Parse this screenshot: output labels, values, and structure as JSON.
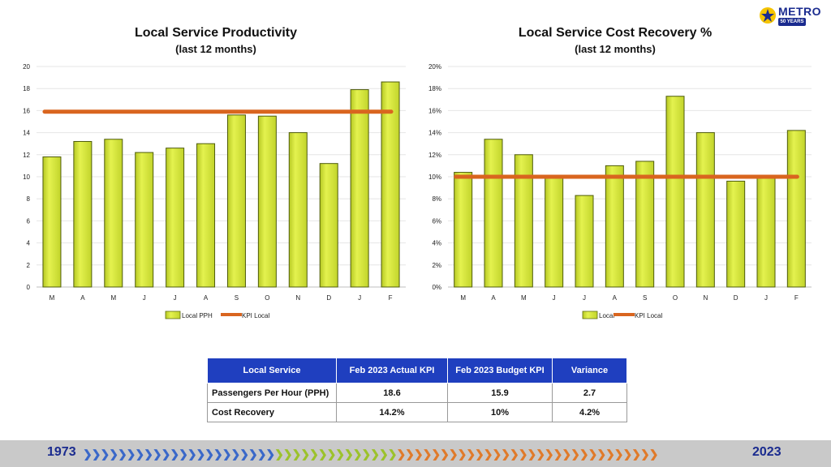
{
  "logo": {
    "text": "METRO",
    "badge": "50 YEARS"
  },
  "charts": [
    {
      "title": "Local Service Productivity",
      "subtitle": "(last 12 months)",
      "legend": [
        "Local PPH",
        "KPI Local"
      ]
    },
    {
      "title": "Local Service Cost Recovery %",
      "subtitle": "(last 12 months)",
      "legend": [
        "Local",
        "KPI Local"
      ]
    }
  ],
  "chart_data": [
    {
      "type": "bar",
      "title": "Local Service Productivity",
      "subtitle": "(last 12 months)",
      "categories": [
        "M",
        "A",
        "M",
        "J",
        "J",
        "A",
        "S",
        "O",
        "N",
        "D",
        "J",
        "F"
      ],
      "series": [
        {
          "name": "Local PPH",
          "type": "bar",
          "values": [
            11.8,
            13.2,
            13.4,
            12.2,
            12.6,
            13.0,
            15.6,
            15.5,
            14.0,
            11.2,
            17.9,
            18.6
          ]
        },
        {
          "name": "KPI Local",
          "type": "line",
          "values": [
            15.9,
            15.9,
            15.9,
            15.9,
            15.9,
            15.9,
            15.9,
            15.9,
            15.9,
            15.9,
            15.9,
            15.9
          ]
        }
      ],
      "ylim": [
        0,
        20
      ],
      "yticks": [
        "0",
        "2",
        "4",
        "6",
        "8",
        "10",
        "12",
        "14",
        "16",
        "18",
        "20"
      ],
      "colors": {
        "bar": "#d4e63a",
        "bar_dark": "#9aab17",
        "line": "#d9651f",
        "grid": "#e6e6e6"
      }
    },
    {
      "type": "bar",
      "title": "Local Service Cost Recovery %",
      "subtitle": "(last 12 months)",
      "categories": [
        "M",
        "A",
        "M",
        "J",
        "J",
        "A",
        "S",
        "O",
        "N",
        "D",
        "J",
        "F"
      ],
      "series": [
        {
          "name": "Local",
          "type": "bar",
          "values": [
            10.4,
            13.4,
            12.0,
            10.0,
            8.3,
            11.0,
            11.4,
            17.3,
            14.0,
            9.6,
            10.0,
            14.2
          ]
        },
        {
          "name": "KPI Local",
          "type": "line",
          "values": [
            10,
            10,
            10,
            10,
            10,
            10,
            10,
            10,
            10,
            10,
            10,
            10
          ]
        }
      ],
      "ylim": [
        0,
        20
      ],
      "yticks": [
        "0%",
        "2%",
        "4%",
        "6%",
        "8%",
        "10%",
        "12%",
        "14%",
        "16%",
        "18%",
        "20%"
      ],
      "colors": {
        "bar": "#d4e63a",
        "bar_dark": "#9aab17",
        "line": "#d9651f",
        "grid": "#e6e6e6"
      }
    }
  ],
  "table": {
    "headers": [
      "Local Service",
      "Feb 2023 Actual KPI",
      "Feb 2023 Budget KPI",
      "Variance"
    ],
    "rows": [
      [
        "Passengers Per Hour (PPH)",
        "18.6",
        "15.9",
        "2.7"
      ],
      [
        "Cost Recovery",
        "14.2%",
        "10%",
        "4.2%"
      ]
    ]
  },
  "footer": {
    "start_year": "1973",
    "end_year": "2023"
  }
}
